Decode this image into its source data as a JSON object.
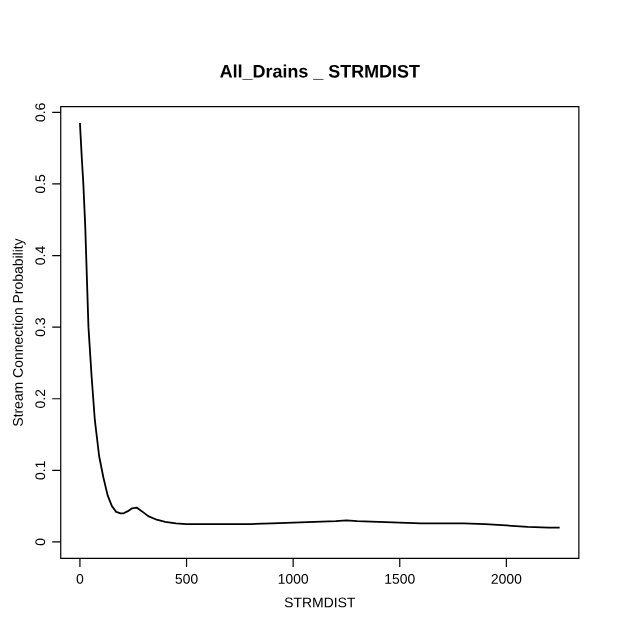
{
  "chart_data": {
    "type": "line",
    "title": "All_Drains _ STRMDIST",
    "xlabel": "STRMDIST",
    "ylabel": "Stream Connection Probability",
    "x": [
      0,
      8,
      16,
      25,
      40,
      55,
      70,
      90,
      110,
      130,
      150,
      170,
      190,
      205,
      225,
      245,
      266,
      290,
      320,
      360,
      400,
      450,
      500,
      600,
      700,
      800,
      900,
      1000,
      1100,
      1200,
      1250,
      1300,
      1400,
      1500,
      1600,
      1700,
      1800,
      1900,
      2000,
      2100,
      2200,
      2250
    ],
    "series": [
      {
        "color": "#000000",
        "values": [
          0.585,
          0.54,
          0.5,
          0.44,
          0.3,
          0.23,
          0.17,
          0.12,
          0.09,
          0.065,
          0.05,
          0.042,
          0.04,
          0.04,
          0.043,
          0.047,
          0.048,
          0.043,
          0.036,
          0.031,
          0.028,
          0.026,
          0.025,
          0.025,
          0.025,
          0.025,
          0.026,
          0.027,
          0.028,
          0.029,
          0.03,
          0.029,
          0.028,
          0.027,
          0.026,
          0.026,
          0.026,
          0.025,
          0.023,
          0.021,
          0.02,
          0.02
        ]
      }
    ],
    "xlim": [
      -90,
      2340
    ],
    "ylim": [
      -0.023,
      0.608
    ],
    "xticks": [
      0,
      500,
      1000,
      1500,
      2000
    ],
    "yticks": [
      0,
      0.1,
      0.2,
      0.3,
      0.4,
      0.5,
      0.6
    ],
    "marker": "none",
    "line_style": "solid"
  }
}
